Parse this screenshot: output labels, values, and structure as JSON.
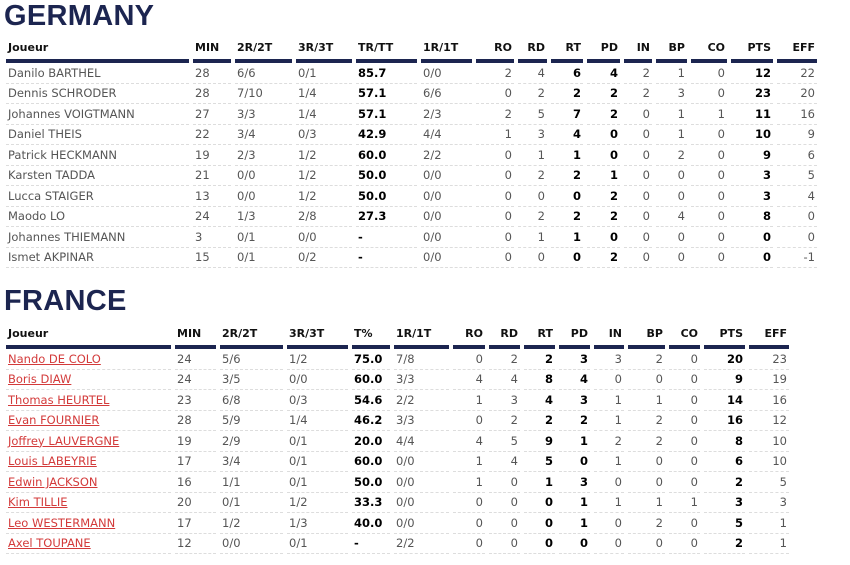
{
  "germany": {
    "title": "GERMANY",
    "columns": [
      "Joueur",
      "MIN",
      "2R/2T",
      "3R/3T",
      "TR/TT",
      "1R/1T",
      "RO",
      "RD",
      "RT",
      "PD",
      "IN",
      "BP",
      "CO",
      "PTS",
      "EFF"
    ],
    "rows": [
      [
        "Danilo BARTHEL",
        "28",
        "6/6",
        "0/1",
        "85.7",
        "0/0",
        "2",
        "4",
        "6",
        "4",
        "2",
        "1",
        "0",
        "12",
        "22"
      ],
      [
        "Dennis SCHRODER",
        "28",
        "7/10",
        "1/4",
        "57.1",
        "6/6",
        "0",
        "2",
        "2",
        "2",
        "2",
        "3",
        "0",
        "23",
        "20"
      ],
      [
        "Johannes VOIGTMANN",
        "27",
        "3/3",
        "1/4",
        "57.1",
        "2/3",
        "2",
        "5",
        "7",
        "2",
        "0",
        "1",
        "1",
        "11",
        "16"
      ],
      [
        "Daniel THEIS",
        "22",
        "3/4",
        "0/3",
        "42.9",
        "4/4",
        "1",
        "3",
        "4",
        "0",
        "0",
        "1",
        "0",
        "10",
        "9"
      ],
      [
        "Patrick HECKMANN",
        "19",
        "2/3",
        "1/2",
        "60.0",
        "2/2",
        "0",
        "1",
        "1",
        "0",
        "0",
        "2",
        "0",
        "9",
        "6"
      ],
      [
        "Karsten TADDA",
        "21",
        "0/0",
        "1/2",
        "50.0",
        "0/0",
        "0",
        "2",
        "2",
        "1",
        "0",
        "0",
        "0",
        "3",
        "5"
      ],
      [
        "Lucca STAIGER",
        "13",
        "0/0",
        "1/2",
        "50.0",
        "0/0",
        "0",
        "0",
        "0",
        "2",
        "0",
        "0",
        "0",
        "3",
        "4"
      ],
      [
        "Maodo LO",
        "24",
        "1/3",
        "2/8",
        "27.3",
        "0/0",
        "0",
        "2",
        "2",
        "2",
        "0",
        "4",
        "0",
        "8",
        "0"
      ],
      [
        "Johannes THIEMANN",
        "3",
        "0/1",
        "0/0",
        "-",
        "0/0",
        "0",
        "1",
        "1",
        "0",
        "0",
        "0",
        "0",
        "0",
        "0"
      ],
      [
        "Ismet AKPINAR",
        "15",
        "0/1",
        "0/2",
        "-",
        "0/0",
        "0",
        "0",
        "0",
        "2",
        "0",
        "0",
        "0",
        "0",
        "-1"
      ]
    ]
  },
  "france": {
    "title": "FRANCE",
    "columns": [
      "Joueur",
      "MIN",
      "2R/2T",
      "3R/3T",
      "T%",
      "1R/1T",
      "RO",
      "RD",
      "RT",
      "PD",
      "IN",
      "BP",
      "CO",
      "PTS",
      "EFF"
    ],
    "rows": [
      [
        "Nando DE COLO",
        "24",
        "5/6",
        "1/2",
        "75.0",
        "7/8",
        "0",
        "2",
        "2",
        "3",
        "3",
        "2",
        "0",
        "20",
        "23"
      ],
      [
        "Boris DIAW",
        "24",
        "3/5",
        "0/0",
        "60.0",
        "3/3",
        "4",
        "4",
        "8",
        "4",
        "0",
        "0",
        "0",
        "9",
        "19"
      ],
      [
        "Thomas HEURTEL",
        "23",
        "6/8",
        "0/3",
        "54.6",
        "2/2",
        "1",
        "3",
        "4",
        "3",
        "1",
        "1",
        "0",
        "14",
        "16"
      ],
      [
        "Evan FOURNIER",
        "28",
        "5/9",
        "1/4",
        "46.2",
        "3/3",
        "0",
        "2",
        "2",
        "2",
        "1",
        "2",
        "0",
        "16",
        "12"
      ],
      [
        "Joffrey LAUVERGNE",
        "19",
        "2/9",
        "0/1",
        "20.0",
        "4/4",
        "4",
        "5",
        "9",
        "1",
        "2",
        "2",
        "0",
        "8",
        "10"
      ],
      [
        "Louis LABEYRIE",
        "17",
        "3/4",
        "0/1",
        "60.0",
        "0/0",
        "1",
        "4",
        "5",
        "0",
        "1",
        "0",
        "0",
        "6",
        "10"
      ],
      [
        "Edwin JACKSON",
        "16",
        "1/1",
        "0/1",
        "50.0",
        "0/0",
        "1",
        "0",
        "1",
        "3",
        "0",
        "0",
        "0",
        "2",
        "5"
      ],
      [
        "Kim TILLIE",
        "20",
        "0/1",
        "1/2",
        "33.3",
        "0/0",
        "0",
        "0",
        "0",
        "1",
        "1",
        "1",
        "1",
        "3",
        "3"
      ],
      [
        "Leo WESTERMANN",
        "17",
        "1/2",
        "1/3",
        "40.0",
        "0/0",
        "0",
        "0",
        "0",
        "1",
        "0",
        "2",
        "0",
        "5",
        "1"
      ],
      [
        "Axel TOUPANE",
        "12",
        "0/0",
        "0/1",
        "-",
        "2/2",
        "0",
        "0",
        "0",
        "0",
        "0",
        "0",
        "0",
        "2",
        "1"
      ]
    ],
    "link_color": "#d33a3a"
  },
  "accent_color": "#1c2550"
}
